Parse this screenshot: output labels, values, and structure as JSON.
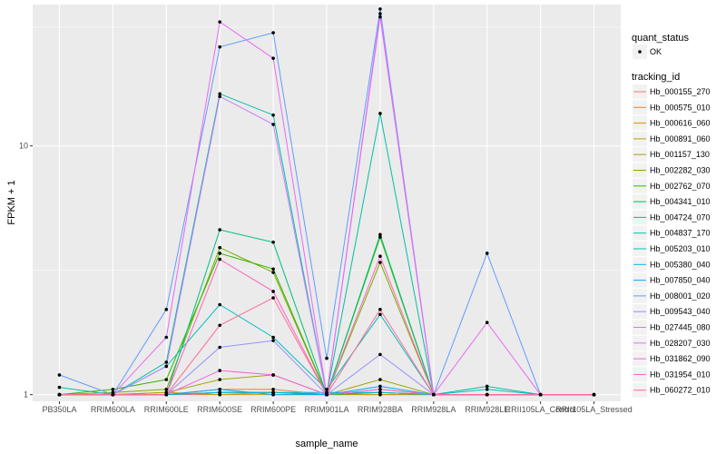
{
  "chart_data": {
    "type": "line",
    "xlabel": "sample_name",
    "ylabel": "FPKM + 1",
    "y_scale": "log10",
    "ylim": [
      0.94,
      37
    ],
    "y_ticks": [
      1,
      10
    ],
    "y_tick_labels": [
      "1",
      "10"
    ],
    "grid": true,
    "legend_position": "right",
    "categories": [
      "PB350LA",
      "RRIM600LA",
      "RRIM600LE",
      "RRIM600SE",
      "RRIM600PE",
      "RRIM901LA",
      "RRIM928BA",
      "RRIM928LA",
      "RRIM928LE",
      "RRII105LA_Control",
      "RRII105LA_Stressed"
    ],
    "shape_legend": {
      "title": "quant_status",
      "items": [
        "OK"
      ]
    },
    "color_legend_title": "tracking_id",
    "series": [
      {
        "name": "Hb_000155_270",
        "color": "#F8766D",
        "values": [
          1.0,
          1.0,
          1.0,
          1.0,
          1.02,
          1.0,
          1.02,
          1.0,
          1.0,
          1.0,
          1.0
        ]
      },
      {
        "name": "Hb_000575_010",
        "color": "#EA8331",
        "values": [
          1.0,
          1.0,
          1.0,
          1.05,
          1.05,
          1.0,
          1.05,
          1.0,
          1.0,
          1.0,
          1.0
        ]
      },
      {
        "name": "Hb_000616_060",
        "color": "#D89000",
        "values": [
          1.0,
          1.0,
          1.0,
          1.02,
          1.02,
          1.0,
          1.0,
          1.0,
          1.0,
          1.0,
          1.0
        ]
      },
      {
        "name": "Hb_000891_060",
        "color": "#C09B00",
        "values": [
          1.0,
          1.0,
          1.02,
          1.0,
          1.0,
          1.0,
          1.0,
          1.0,
          1.0,
          1.0,
          1.0
        ]
      },
      {
        "name": "Hb_001157_130",
        "color": "#A3A500",
        "values": [
          1.0,
          1.0,
          1.02,
          1.15,
          1.2,
          1.0,
          1.15,
          1.0,
          1.0,
          1.0,
          1.0
        ]
      },
      {
        "name": "Hb_002282_030",
        "color": "#7CAE00",
        "values": [
          1.0,
          1.02,
          1.05,
          3.9,
          3.1,
          1.0,
          3.4,
          1.0,
          1.0,
          1.0,
          1.0
        ]
      },
      {
        "name": "Hb_002762_070",
        "color": "#39B600",
        "values": [
          1.0,
          1.05,
          1.15,
          3.7,
          3.2,
          1.0,
          4.3,
          1.0,
          1.0,
          1.0,
          1.0
        ]
      },
      {
        "name": "Hb_004341_010",
        "color": "#00BB4E",
        "values": [
          1.0,
          1.0,
          1.0,
          1.02,
          1.02,
          1.0,
          1.02,
          1.0,
          1.0,
          1.0,
          1.0
        ]
      },
      {
        "name": "Hb_004724_070",
        "color": "#00BF7D",
        "values": [
          1.0,
          1.0,
          1.0,
          4.6,
          4.1,
          1.0,
          4.4,
          1.0,
          1.0,
          1.0,
          1.0
        ]
      },
      {
        "name": "Hb_004837_170",
        "color": "#00C1A3",
        "values": [
          1.07,
          1.0,
          1.35,
          16.2,
          13.3,
          1.0,
          13.5,
          1.0,
          1.08,
          1.0,
          1.0
        ]
      },
      {
        "name": "Hb_005203_010",
        "color": "#00BFC4",
        "values": [
          1.0,
          1.0,
          1.3,
          2.3,
          1.7,
          1.05,
          2.1,
          1.0,
          1.05,
          1.0,
          1.0
        ]
      },
      {
        "name": "Hb_005380_040",
        "color": "#00B8E5",
        "values": [
          1.0,
          1.0,
          1.0,
          1.02,
          1.02,
          1.02,
          1.02,
          1.0,
          1.0,
          1.0,
          1.0
        ]
      },
      {
        "name": "Hb_007850_040",
        "color": "#00A9FF",
        "values": [
          1.0,
          1.0,
          1.0,
          1.05,
          1.0,
          1.0,
          1.08,
          1.0,
          1.0,
          1.0,
          1.0
        ]
      },
      {
        "name": "Hb_008001_020",
        "color": "#619CFF",
        "values": [
          1.2,
          1.0,
          2.2,
          25.0,
          28.5,
          1.4,
          35.5,
          1.0,
          3.7,
          1.0,
          1.0
        ]
      },
      {
        "name": "Hb_009543_040",
        "color": "#9590FF",
        "values": [
          1.0,
          1.0,
          1.0,
          1.55,
          1.65,
          1.0,
          1.45,
          1.0,
          1.0,
          1.0,
          1.0
        ]
      },
      {
        "name": "Hb_027445_080",
        "color": "#C77CFF",
        "values": [
          1.0,
          1.0,
          1.3,
          15.8,
          12.2,
          1.0,
          34.0,
          1.0,
          1.0,
          1.0,
          1.0
        ]
      },
      {
        "name": "Hb_028207_030",
        "color": "#E76BF3",
        "values": [
          1.0,
          1.0,
          1.7,
          31.5,
          22.5,
          1.0,
          33.0,
          1.0,
          1.95,
          1.0,
          1.0
        ]
      },
      {
        "name": "Hb_031862_090",
        "color": "#FA62DB",
        "values": [
          1.0,
          1.0,
          1.0,
          1.25,
          1.2,
          1.0,
          1.05,
          1.0,
          1.0,
          1.0,
          1.0
        ]
      },
      {
        "name": "Hb_031954_010",
        "color": "#FF62BC",
        "values": [
          1.0,
          1.0,
          1.0,
          3.5,
          2.6,
          1.0,
          3.6,
          1.0,
          1.0,
          1.0,
          1.0
        ]
      },
      {
        "name": "Hb_060272_010",
        "color": "#FF6C91",
        "values": [
          1.0,
          1.0,
          1.0,
          1.9,
          2.45,
          1.0,
          2.2,
          1.0,
          1.0,
          1.0,
          1.0
        ]
      }
    ]
  }
}
